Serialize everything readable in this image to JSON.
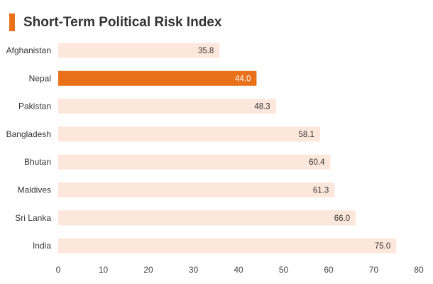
{
  "chart_data": {
    "type": "bar",
    "orientation": "horizontal",
    "title": "Short-Term Political Risk Index",
    "categories": [
      "Afghanistan",
      "Nepal",
      "Pakistan",
      "Bangladesh",
      "Bhutan",
      "Maldives",
      "Sri Lanka",
      "India"
    ],
    "values": [
      35.8,
      44.0,
      48.3,
      58.1,
      60.4,
      61.3,
      66.0,
      75.0
    ],
    "value_labels": [
      "35.8",
      "44.0",
      "48.3",
      "58.1",
      "60.4",
      "61.3",
      "66.0",
      "75.0"
    ],
    "highlight_category": "Nepal",
    "xlim": [
      0,
      80
    ],
    "xticks": [
      0,
      10,
      20,
      30,
      40,
      50,
      60,
      70,
      80
    ],
    "grid": false,
    "legend": "none",
    "colors": {
      "bar": "#fde7dc",
      "highlight": "#e8711a",
      "accent": "#e8711a",
      "label": "#333333",
      "highlight_label": "#ffffff"
    }
  }
}
